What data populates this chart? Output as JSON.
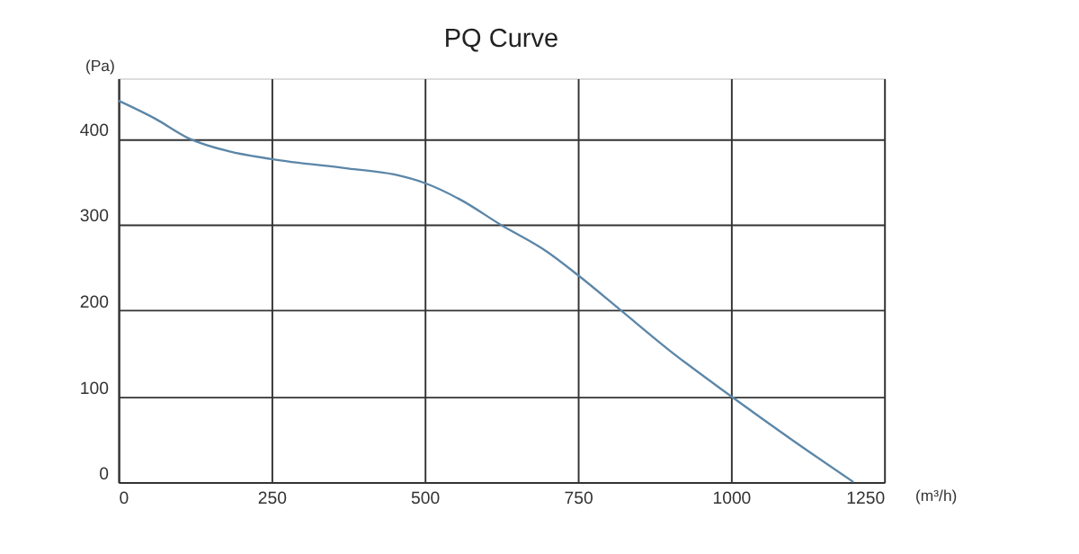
{
  "chart_data": {
    "type": "line",
    "title": "PQ Curve",
    "xlabel": "(m³/h)",
    "ylabel": "(Pa)",
    "x": [
      0,
      60,
      115,
      180,
      250,
      375,
      450,
      500,
      560,
      623,
      700,
      750,
      820,
      900,
      1000,
      1100,
      1200
    ],
    "series": [
      {
        "color": "#5b86a8",
        "values": [
          444,
          423,
          400,
          385,
          376,
          365,
          358,
          348,
          328,
          300,
          268,
          241,
          200,
          153,
          100,
          49,
          0
        ]
      }
    ],
    "xlim": [
      0,
      1250
    ],
    "xticks": [
      0,
      250,
      500,
      750,
      1000,
      1250
    ],
    "ylim": [
      0,
      470
    ],
    "yticks": [
      0,
      100,
      200,
      300,
      400
    ],
    "grid": true,
    "marker": "none",
    "line_style": "solid"
  }
}
